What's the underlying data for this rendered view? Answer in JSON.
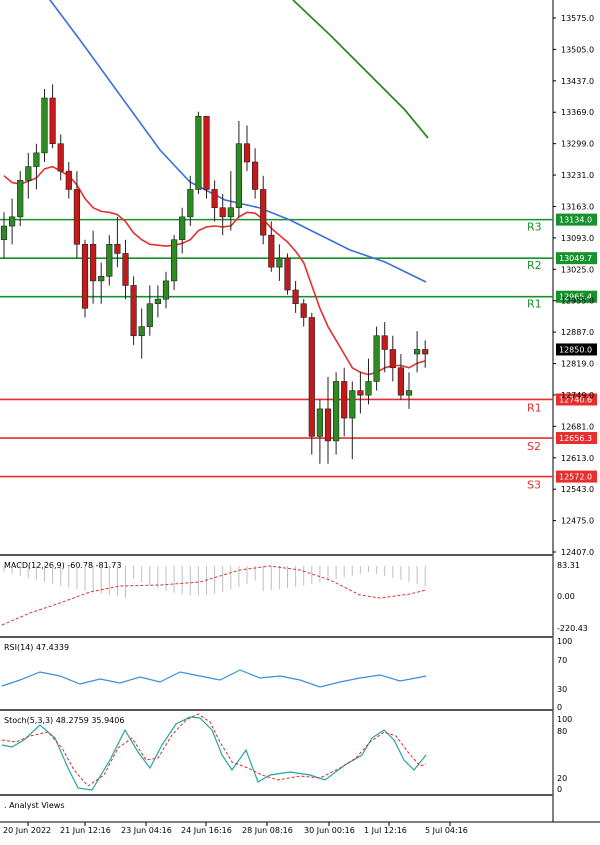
{
  "chart_data": {
    "type": "candlestick",
    "price_axis": {
      "range": [
        12390,
        13620
      ],
      "ticks": [
        "13575.0",
        "13505.0",
        "13437.0",
        "13369.0",
        "13299.0",
        "13231.0",
        "13163.0",
        "13093.0",
        "13025.0",
        "12955.0",
        "12887.0",
        "12819.0",
        "12749.0",
        "12681.0",
        "12613.0",
        "12543.0",
        "12475.0",
        "12407.0"
      ],
      "current_price": "12850.0"
    },
    "levels": [
      {
        "name": "R3",
        "value": 13134.0,
        "label": "13134.0",
        "color": "#17902e"
      },
      {
        "name": "R2",
        "value": 13049.7,
        "label": "13049.7",
        "color": "#17902e"
      },
      {
        "name": "R1",
        "value": 12965.4,
        "label": "12965.4",
        "color": "#17902e"
      },
      {
        "name": "R1",
        "value": 12740.6,
        "label": "12740.6",
        "color": "#e62e2e"
      },
      {
        "name": "S2",
        "value": 12656.3,
        "label": "12656.3",
        "color": "#e62e2e"
      },
      {
        "name": "S3",
        "value": 12572.0,
        "label": "12572.0",
        "color": "#e62e2e"
      }
    ],
    "candles": [
      [
        13090,
        13150,
        13050,
        13120
      ],
      [
        13120,
        13180,
        13080,
        13140
      ],
      [
        13140,
        13240,
        13120,
        13220
      ],
      [
        13220,
        13280,
        13180,
        13250
      ],
      [
        13250,
        13300,
        13200,
        13280
      ],
      [
        13280,
        13420,
        13260,
        13400
      ],
      [
        13400,
        13430,
        13290,
        13300
      ],
      [
        13300,
        13320,
        13220,
        13240
      ],
      [
        13240,
        13260,
        13180,
        13200
      ],
      [
        13200,
        13240,
        13050,
        13080
      ],
      [
        13080,
        13090,
        12920,
        12940
      ],
      [
        13080,
        13110,
        12950,
        13000
      ],
      [
        13000,
        13040,
        12950,
        13010
      ],
      [
        13010,
        13100,
        12990,
        13080
      ],
      [
        13080,
        13140,
        13030,
        13060
      ],
      [
        13060,
        13090,
        12960,
        12990
      ],
      [
        12990,
        13010,
        12860,
        12880
      ],
      [
        12880,
        12940,
        12830,
        12900
      ],
      [
        12900,
        12990,
        12880,
        12950
      ],
      [
        12950,
        12990,
        12920,
        12960
      ],
      [
        12960,
        13020,
        12940,
        13000
      ],
      [
        13000,
        13100,
        12980,
        13090
      ],
      [
        13090,
        13160,
        13060,
        13140
      ],
      [
        13140,
        13230,
        13120,
        13200
      ],
      [
        13200,
        13370,
        13190,
        13360
      ],
      [
        13360,
        13360,
        13180,
        13200
      ],
      [
        13200,
        13220,
        13130,
        13160
      ],
      [
        13160,
        13190,
        13100,
        13140
      ],
      [
        13140,
        13240,
        13110,
        13160
      ],
      [
        13160,
        13350,
        13140,
        13300
      ],
      [
        13300,
        13340,
        13240,
        13260
      ],
      [
        13260,
        13290,
        13180,
        13200
      ],
      [
        13200,
        13230,
        13080,
        13100
      ],
      [
        13100,
        13130,
        13020,
        13030
      ],
      [
        13030,
        13080,
        13000,
        13050
      ],
      [
        13050,
        13060,
        12970,
        12980
      ],
      [
        12980,
        13000,
        12930,
        12950
      ],
      [
        12950,
        12960,
        12900,
        12920
      ],
      [
        12920,
        12930,
        12620,
        12660
      ],
      [
        12660,
        12740,
        12600,
        12720
      ],
      [
        12720,
        12790,
        12600,
        12650
      ],
      [
        12650,
        12800,
        12620,
        12780
      ],
      [
        12780,
        12810,
        12660,
        12700
      ],
      [
        12700,
        12780,
        12610,
        12760
      ],
      [
        12760,
        12800,
        12710,
        12750
      ],
      [
        12750,
        12830,
        12730,
        12780
      ],
      [
        12780,
        12900,
        12760,
        12880
      ],
      [
        12880,
        12910,
        12800,
        12850
      ],
      [
        12850,
        12880,
        12780,
        12810
      ],
      [
        12810,
        12840,
        12740,
        12750
      ],
      [
        12750,
        12800,
        12720,
        12760
      ],
      [
        12840,
        12890,
        12800,
        12850
      ],
      [
        12850,
        12870,
        12810,
        12840
      ]
    ],
    "series": [
      {
        "name": "",
        "color": "#e62e2e",
        "values": [
          13230,
          13215,
          13212,
          13218,
          13225,
          13245,
          13250,
          13240,
          13230,
          13210,
          13180,
          13160,
          13152,
          13150,
          13145,
          13130,
          13105,
          13090,
          13080,
          13078,
          13076,
          13078,
          13082,
          13090,
          13110,
          13118,
          13120,
          13118,
          13120,
          13140,
          13150,
          13148,
          13135,
          13115,
          13100,
          13085,
          13065,
          13040,
          12990,
          12940,
          12900,
          12870,
          12840,
          12810,
          12800,
          12795,
          12800,
          12810,
          12815,
          12815,
          12810,
          12820,
          12825
        ]
      },
      {
        "name": "",
        "color": "#3a6fdc",
        "values": null
      },
      {
        "name": "",
        "color": "#2e8b23",
        "values": null
      }
    ],
    "x_axis_labels": [
      "20 Jun 2022",
      "21 Jun 12:16",
      "23 Jun 04:16",
      "24 Jun 16:16",
      "28 Jun 08:16",
      "30 Jun 00:16",
      "1 Jul 12:16",
      "5 Jul 04:16"
    ],
    "indicators": {
      "macd": {
        "label": "MACD(12,26,9) -60.78 -81.73",
        "ticks": [
          "83.31",
          "0.00",
          "-220.43"
        ]
      },
      "rsi": {
        "label": "RSI(14) 47.4339",
        "ticks": [
          "100",
          "70",
          "30",
          "0"
        ]
      },
      "stoch": {
        "label": "Stoch(5,3,3) 48.2759 35.9406",
        "ticks": [
          "100",
          "80",
          "20",
          "0"
        ]
      }
    },
    "footer_label": ". Analyst Views"
  }
}
